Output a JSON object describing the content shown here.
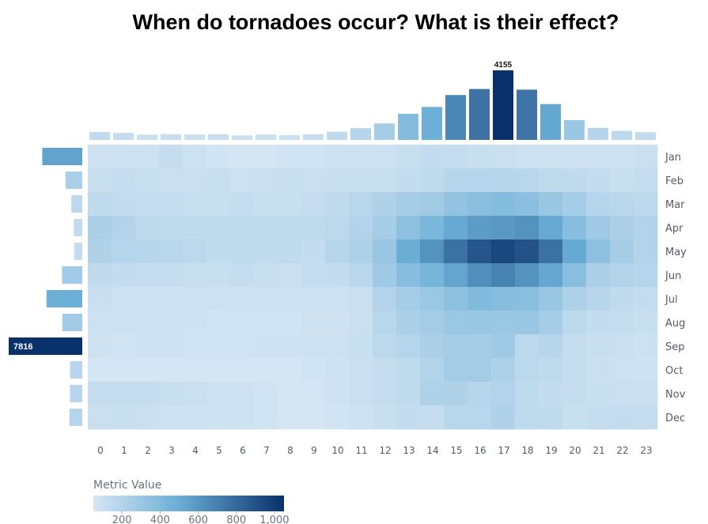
{
  "title": "When do tornadoes occur? What is their effect?",
  "chart_data": {
    "type": "heatmap",
    "title": "When do tornadoes occur? What is their effect?",
    "x_categories": [
      "0",
      "1",
      "2",
      "3",
      "4",
      "5",
      "6",
      "7",
      "8",
      "9",
      "10",
      "11",
      "12",
      "13",
      "14",
      "15",
      "16",
      "17",
      "18",
      "19",
      "20",
      "21",
      "22",
      "23"
    ],
    "y_categories": [
      "Jan",
      "Feb",
      "Mar",
      "Apr",
      "May",
      "Jun",
      "Jul",
      "Aug",
      "Sep",
      "Oct",
      "Nov",
      "Dec"
    ],
    "z": [
      [
        80,
        80,
        90,
        120,
        90,
        70,
        60,
        60,
        70,
        70,
        80,
        80,
        90,
        110,
        130,
        120,
        110,
        100,
        90,
        80,
        80,
        80,
        90,
        100
      ],
      [
        110,
        120,
        110,
        100,
        100,
        110,
        90,
        100,
        110,
        100,
        110,
        110,
        110,
        130,
        150,
        180,
        190,
        180,
        170,
        150,
        140,
        130,
        110,
        120
      ],
      [
        140,
        130,
        120,
        120,
        110,
        110,
        120,
        110,
        110,
        120,
        140,
        170,
        210,
        250,
        270,
        330,
        370,
        390,
        360,
        310,
        250,
        190,
        170,
        160
      ],
      [
        230,
        200,
        160,
        150,
        150,
        140,
        150,
        140,
        140,
        150,
        160,
        200,
        250,
        350,
        430,
        520,
        580,
        590,
        620,
        520,
        380,
        280,
        230,
        200
      ],
      [
        210,
        190,
        180,
        170,
        160,
        140,
        150,
        140,
        140,
        130,
        180,
        220,
        310,
        500,
        620,
        760,
        890,
        950,
        900,
        760,
        520,
        350,
        250,
        200
      ],
      [
        140,
        130,
        120,
        120,
        110,
        110,
        120,
        110,
        100,
        120,
        130,
        170,
        280,
        380,
        440,
        540,
        640,
        690,
        620,
        530,
        370,
        230,
        200,
        190
      ],
      [
        100,
        90,
        80,
        80,
        80,
        90,
        80,
        80,
        80,
        90,
        90,
        100,
        200,
        250,
        300,
        350,
        400,
        380,
        370,
        310,
        220,
        180,
        140,
        130
      ],
      [
        90,
        90,
        80,
        80,
        80,
        70,
        70,
        70,
        70,
        80,
        80,
        100,
        170,
        230,
        260,
        300,
        310,
        300,
        310,
        250,
        160,
        130,
        120,
        110
      ],
      [
        80,
        70,
        80,
        80,
        70,
        70,
        70,
        80,
        80,
        90,
        90,
        110,
        160,
        190,
        230,
        250,
        250,
        280,
        160,
        180,
        120,
        110,
        100,
        90
      ],
      [
        60,
        60,
        60,
        60,
        60,
        60,
        60,
        60,
        60,
        70,
        80,
        100,
        120,
        150,
        200,
        260,
        260,
        220,
        160,
        150,
        120,
        100,
        90,
        80
      ],
      [
        120,
        120,
        120,
        110,
        100,
        90,
        80,
        70,
        60,
        60,
        80,
        100,
        120,
        140,
        210,
        210,
        180,
        200,
        150,
        130,
        120,
        110,
        100,
        100
      ],
      [
        100,
        110,
        100,
        90,
        90,
        80,
        80,
        70,
        60,
        60,
        70,
        90,
        110,
        130,
        120,
        170,
        170,
        210,
        150,
        140,
        110,
        120,
        130,
        120
      ]
    ],
    "top_bars": {
      "values": [
        470,
        420,
        310,
        340,
        320,
        330,
        270,
        320,
        280,
        330,
        490,
        700,
        980,
        1560,
        1970,
        2680,
        3040,
        4155,
        3000,
        2140,
        1180,
        720,
        540,
        460
      ],
      "labels": [
        "",
        "",
        "",
        "",
        "",
        "",
        "",
        "",
        "",
        "",
        "",
        "",
        "",
        "",
        "",
        "",
        "",
        "4155",
        "",
        "",
        "",
        "",
        "",
        ""
      ]
    },
    "left_bars": {
      "values": [
        4250,
        1780,
        1160,
        900,
        850,
        2150,
        3800,
        2120,
        7816,
        1300,
        1310,
        1370
      ],
      "labels": [
        "",
        "",
        "",
        "",
        "",
        "",
        "",
        "",
        "7816",
        "",
        "",
        ""
      ]
    },
    "legend": {
      "title": "Metric Value",
      "ticks": [
        "200",
        "400",
        "600",
        "800",
        "1,000"
      ],
      "tick_values": [
        200,
        400,
        600,
        800,
        1000
      ],
      "domain": [
        50,
        1050
      ],
      "colors": [
        "#d6e6f4",
        "#6aaed6",
        "#08306b"
      ]
    },
    "grid": false
  }
}
